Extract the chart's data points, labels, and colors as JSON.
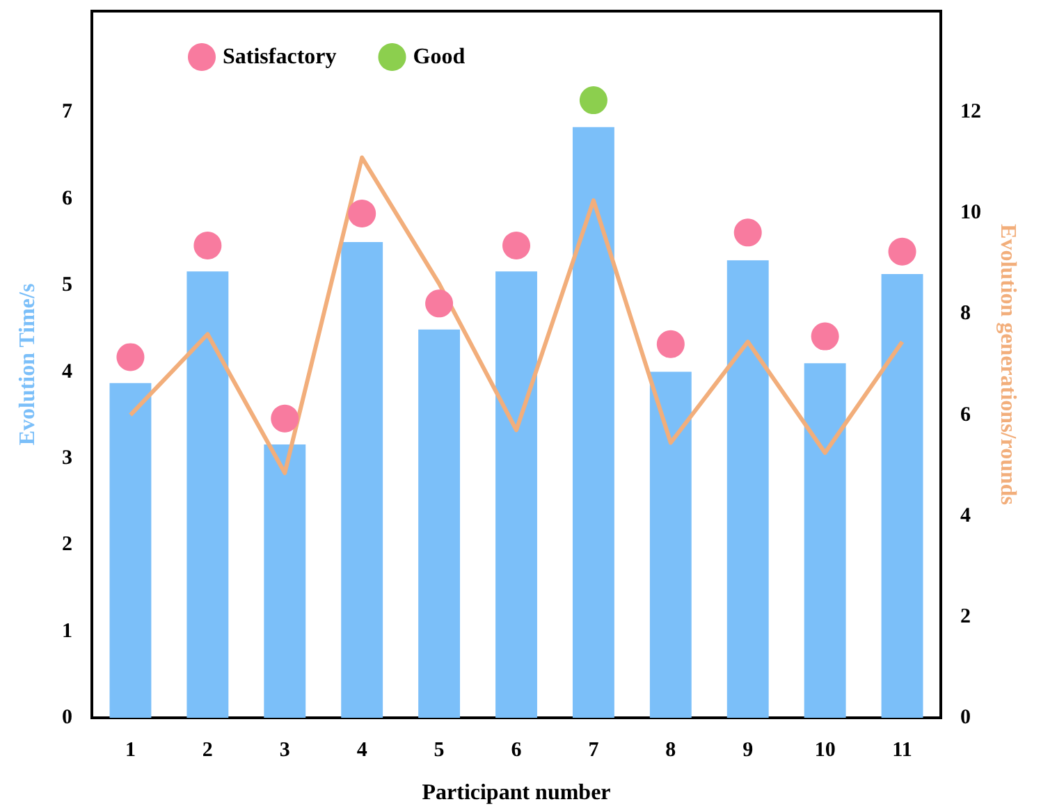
{
  "chart_data": {
    "type": "bar",
    "xlabel": "Participant number",
    "ylabel": "Evolution Time/s",
    "y2label": "Evolution generations/rounds",
    "categories": [
      "1",
      "2",
      "3",
      "4",
      "5",
      "6",
      "7",
      "8",
      "9",
      "10",
      "11"
    ],
    "series": [
      {
        "color": "#7bbff9",
        "values": [
          3.87,
          5.16,
          3.16,
          5.5,
          4.49,
          5.16,
          6.83,
          4.0,
          5.29,
          4.1,
          5.13
        ]
      },
      {
        "type": "line",
        "axis": "y2",
        "marker": "none",
        "color": "#f2ae7b",
        "values": [
          6.0,
          7.6,
          4.85,
          11.1,
          8.6,
          5.7,
          10.25,
          5.45,
          7.45,
          5.25,
          7.45
        ]
      },
      {
        "type": "scatter",
        "marker": "circle",
        "name": "Satisfactory",
        "color": "#f87b9f",
        "x": [
          "1",
          "2",
          "3",
          "4",
          "5",
          "6",
          "8",
          "9",
          "10",
          "11"
        ],
        "values": [
          4.17,
          5.46,
          3.46,
          5.83,
          4.79,
          5.46,
          4.32,
          5.61,
          4.41,
          5.39
        ]
      },
      {
        "type": "scatter",
        "marker": "circle",
        "name": "Good",
        "color": "#8ccf4e",
        "x": [
          "7"
        ],
        "values": [
          7.14
        ]
      }
    ],
    "ylim": [
      0,
      8.17
    ],
    "yticks": [
      0,
      1,
      2,
      3,
      4,
      5,
      6,
      7
    ],
    "y2lim": [
      0,
      14
    ],
    "y2ticks": [
      0,
      2,
      4,
      6,
      8,
      10,
      12
    ],
    "legend": "top",
    "grid": false
  }
}
